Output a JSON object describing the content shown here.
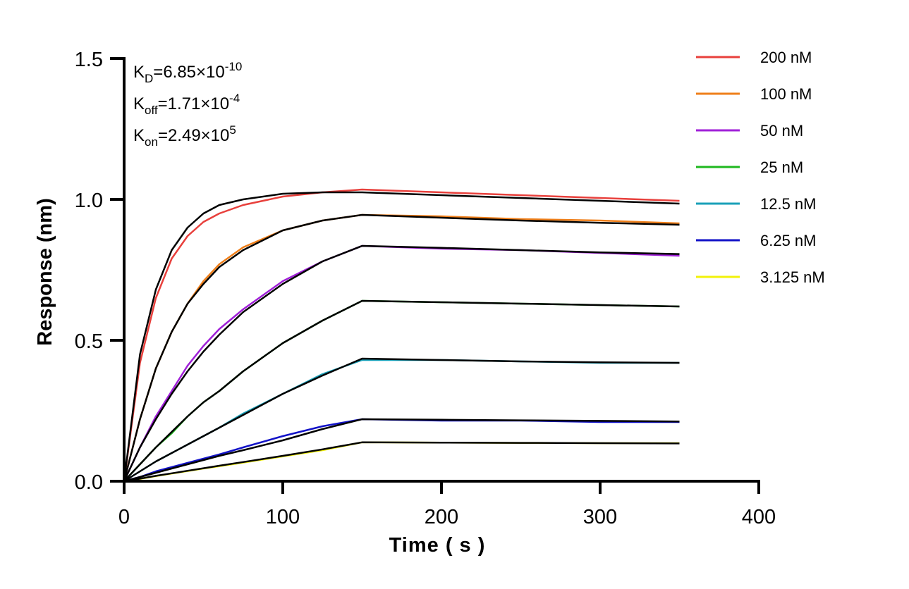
{
  "chart_data": {
    "type": "line",
    "xlabel": "Time ( s )",
    "ylabel": "Response (nm)",
    "xlim": [
      0,
      400
    ],
    "ylim": [
      0,
      1.5
    ],
    "xticks": [
      "0",
      "100",
      "200",
      "300",
      "400"
    ],
    "yticks": [
      "0.0",
      "0.5",
      "1.0",
      "1.5"
    ],
    "grid": false,
    "legend_position": "right",
    "annotations": [
      {
        "base": "K",
        "sub": "D",
        "text": "=6.85×10",
        "sup": "-10"
      },
      {
        "base": "K",
        "sub": "off",
        "text": "=1.71×10",
        "sup": "-4"
      },
      {
        "base": "K",
        "sub": "on",
        "text": "=2.49×10",
        "sup": "5"
      }
    ],
    "x": [
      0,
      10,
      20,
      30,
      40,
      50,
      60,
      75,
      100,
      125,
      150,
      200,
      250,
      300,
      350
    ],
    "series": [
      {
        "name": "200 nM",
        "color": "#e8403c",
        "values": [
          0,
          0.42,
          0.65,
          0.79,
          0.87,
          0.92,
          0.95,
          0.98,
          1.01,
          1.025,
          1.035,
          1.025,
          1.015,
          1.005,
          0.995
        ]
      },
      {
        "name": "100 nM",
        "color": "#ef7f1a",
        "values": [
          0,
          0.22,
          0.4,
          0.53,
          0.63,
          0.71,
          0.77,
          0.83,
          0.89,
          0.925,
          0.945,
          0.94,
          0.93,
          0.925,
          0.915
        ]
      },
      {
        "name": "50 nM",
        "color": "#a020d8",
        "values": [
          0,
          0.12,
          0.23,
          0.32,
          0.41,
          0.48,
          0.54,
          0.61,
          0.71,
          0.78,
          0.835,
          0.825,
          0.82,
          0.81,
          0.8
        ]
      },
      {
        "name": "25 nM",
        "color": "#1fb81f",
        "values": [
          0,
          0.06,
          0.12,
          0.17,
          0.23,
          0.28,
          0.32,
          0.39,
          0.49,
          0.57,
          0.64,
          0.635,
          0.63,
          0.625,
          0.62
        ]
      },
      {
        "name": "12.5 nM",
        "color": "#1aa0b8",
        "values": [
          0,
          0.035,
          0.07,
          0.1,
          0.13,
          0.16,
          0.19,
          0.24,
          0.31,
          0.38,
          0.43,
          0.43,
          0.425,
          0.42,
          0.42
        ]
      },
      {
        "name": "6.25 nM",
        "color": "#1313c8",
        "values": [
          0,
          0.015,
          0.035,
          0.05,
          0.065,
          0.08,
          0.095,
          0.12,
          0.16,
          0.195,
          0.22,
          0.215,
          0.215,
          0.21,
          0.21
        ]
      },
      {
        "name": "3.125 nM",
        "color": "#f2f20a",
        "values": [
          0,
          0.008,
          0.018,
          0.027,
          0.036,
          0.045,
          0.053,
          0.066,
          0.088,
          0.11,
          0.138,
          0.137,
          0.136,
          0.135,
          0.135
        ]
      }
    ],
    "fit_color": "#000000",
    "fit": [
      [
        0,
        0.45,
        0.68,
        0.82,
        0.9,
        0.95,
        0.98,
        1.0,
        1.02,
        1.025,
        1.025,
        1.015,
        1.005,
        0.995,
        0.985
      ],
      [
        0,
        0.22,
        0.4,
        0.53,
        0.63,
        0.7,
        0.76,
        0.82,
        0.89,
        0.925,
        0.945,
        0.935,
        0.925,
        0.917,
        0.91
      ],
      [
        0,
        0.12,
        0.22,
        0.31,
        0.39,
        0.46,
        0.52,
        0.6,
        0.7,
        0.78,
        0.835,
        0.828,
        0.82,
        0.812,
        0.806
      ],
      [
        0,
        0.06,
        0.12,
        0.175,
        0.23,
        0.28,
        0.32,
        0.39,
        0.49,
        0.57,
        0.64,
        0.635,
        0.63,
        0.625,
        0.62
      ],
      [
        0,
        0.035,
        0.07,
        0.1,
        0.13,
        0.16,
        0.19,
        0.235,
        0.31,
        0.375,
        0.435,
        0.43,
        0.425,
        0.422,
        0.42
      ],
      [
        0,
        0.015,
        0.03,
        0.045,
        0.06,
        0.075,
        0.09,
        0.11,
        0.145,
        0.185,
        0.22,
        0.218,
        0.216,
        0.214,
        0.212
      ],
      [
        0,
        0.009,
        0.019,
        0.028,
        0.037,
        0.046,
        0.055,
        0.068,
        0.09,
        0.113,
        0.138,
        0.137,
        0.136,
        0.135,
        0.134
      ]
    ]
  }
}
